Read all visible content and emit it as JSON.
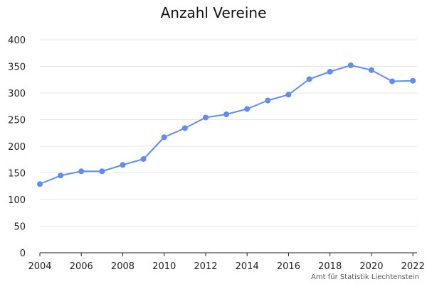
{
  "title": "Anzahl Vereine",
  "source": "Amt für Statistik Liechtenstein",
  "colors": {
    "line": "#5f8cf6",
    "grid": "#e6e6e6",
    "axis": "#222222"
  },
  "chart_data": {
    "type": "line",
    "title": "Anzahl Vereine",
    "xlabel": "",
    "ylabel": "",
    "x": [
      2004,
      2005,
      2006,
      2007,
      2008,
      2009,
      2010,
      2011,
      2012,
      2013,
      2014,
      2015,
      2016,
      2017,
      2018,
      2019,
      2020,
      2021,
      2022
    ],
    "series": [
      {
        "values": [
          129,
          145,
          153,
          153,
          165,
          176,
          217,
          234,
          254,
          260,
          270,
          286,
          297,
          326,
          340,
          352,
          343,
          322,
          323
        ]
      }
    ],
    "xlim": [
      2004,
      2022.2
    ],
    "ylim": [
      0,
      400
    ],
    "x_ticks": [
      2004,
      2006,
      2008,
      2010,
      2012,
      2014,
      2016,
      2018,
      2020,
      2022
    ],
    "y_ticks": [
      0,
      50,
      100,
      150,
      200,
      250,
      300,
      350,
      400
    ],
    "grid": true,
    "legend": "none"
  }
}
